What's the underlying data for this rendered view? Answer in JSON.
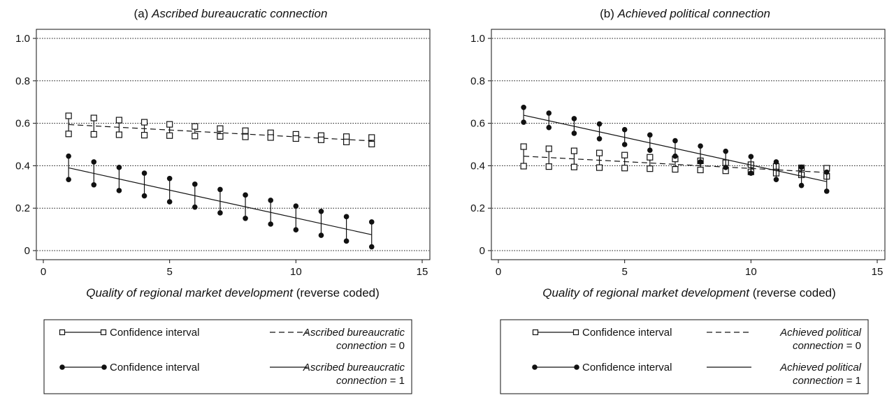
{
  "chart_data": [
    {
      "type": "line",
      "panel_label": "(a)",
      "title": "Ascribed bureaucratic connection",
      "xlabel_italic": "Quality of regional market development",
      "xlabel_suffix": "(reverse coded)",
      "xlim": [
        0,
        15
      ],
      "ylim": [
        0,
        1
      ],
      "x_ticks": [
        0,
        5,
        10,
        15
      ],
      "y_ticks": [
        0,
        0.2,
        0.4,
        0.6,
        0.8,
        1.0
      ],
      "y_tick_labels": [
        "0",
        "0.2",
        "0.4",
        "0.6",
        "0.8",
        "1.0"
      ],
      "grid": "horizontal dotted",
      "series": [
        {
          "key": "c0",
          "marker": "hollow-square",
          "line": "dashed",
          "x": [
            1,
            2,
            3,
            4,
            5,
            6,
            7,
            8,
            9,
            10,
            11,
            12,
            13
          ],
          "y_fit": [
            0.594,
            0.588,
            0.581,
            0.575,
            0.568,
            0.562,
            0.556,
            0.549,
            0.543,
            0.536,
            0.53,
            0.524,
            0.517
          ],
          "ci_upper": [
            0.635,
            0.625,
            0.615,
            0.605,
            0.595,
            0.585,
            0.575,
            0.565,
            0.555,
            0.548,
            0.542,
            0.537,
            0.533
          ],
          "ci_lower": [
            0.55,
            0.548,
            0.546,
            0.544,
            0.542,
            0.54,
            0.538,
            0.536,
            0.533,
            0.528,
            0.522,
            0.512,
            0.502
          ]
        },
        {
          "key": "c1",
          "marker": "filled-circle",
          "line": "solid",
          "x": [
            1,
            2,
            3,
            4,
            5,
            6,
            7,
            8,
            9,
            10,
            11,
            12,
            13
          ],
          "y_fit": [
            0.39,
            0.364,
            0.338,
            0.311,
            0.285,
            0.259,
            0.233,
            0.206,
            0.18,
            0.154,
            0.128,
            0.101,
            0.075
          ],
          "ci_upper": [
            0.445,
            0.418,
            0.392,
            0.365,
            0.34,
            0.313,
            0.288,
            0.262,
            0.237,
            0.21,
            0.185,
            0.16,
            0.135
          ],
          "ci_lower": [
            0.335,
            0.31,
            0.283,
            0.258,
            0.23,
            0.205,
            0.178,
            0.152,
            0.125,
            0.098,
            0.072,
            0.045,
            0.018
          ]
        }
      ],
      "legend": {
        "ci_label": "Confidence interval",
        "line_label_0a": "Ascribed bureaucratic",
        "line_label_0b": "connection",
        "line_label_0c": "= 0",
        "line_label_1a": "Ascribed bureaucratic",
        "line_label_1b": "connection",
        "line_label_1c": "= 1"
      }
    },
    {
      "type": "line",
      "panel_label": "(b)",
      "title": "Achieved political connection",
      "xlabel_italic": "Quality of regional market development",
      "xlabel_suffix": "(reverse coded)",
      "xlim": [
        0,
        15
      ],
      "ylim": [
        0,
        1
      ],
      "x_ticks": [
        0,
        5,
        10,
        15
      ],
      "y_ticks": [
        0,
        0.2,
        0.4,
        0.6,
        0.8,
        1.0
      ],
      "y_tick_labels": [
        "0",
        "0.2",
        "0.4",
        "0.6",
        "0.8",
        "1.0"
      ],
      "grid": "horizontal dotted",
      "series": [
        {
          "key": "c0",
          "marker": "hollow-square",
          "line": "dashed",
          "x": [
            1,
            2,
            3,
            4,
            5,
            6,
            7,
            8,
            9,
            10,
            11,
            12,
            13
          ],
          "y_fit": [
            0.445,
            0.439,
            0.432,
            0.426,
            0.419,
            0.413,
            0.407,
            0.4,
            0.394,
            0.387,
            0.381,
            0.375,
            0.368
          ],
          "ci_upper": [
            0.49,
            0.48,
            0.47,
            0.46,
            0.45,
            0.44,
            0.432,
            0.423,
            0.414,
            0.405,
            0.397,
            0.39,
            0.388
          ],
          "ci_lower": [
            0.398,
            0.396,
            0.394,
            0.391,
            0.389,
            0.386,
            0.383,
            0.38,
            0.376,
            0.371,
            0.365,
            0.357,
            0.35
          ]
        },
        {
          "key": "c1",
          "marker": "filled-circle",
          "line": "solid",
          "x": [
            1,
            2,
            3,
            4,
            5,
            6,
            7,
            8,
            9,
            10,
            11,
            12,
            13
          ],
          "y_fit": [
            0.638,
            0.612,
            0.586,
            0.56,
            0.534,
            0.508,
            0.481,
            0.455,
            0.429,
            0.403,
            0.377,
            0.351,
            0.325
          ],
          "ci_upper": [
            0.675,
            0.648,
            0.622,
            0.597,
            0.57,
            0.545,
            0.518,
            0.493,
            0.468,
            0.443,
            0.418,
            0.393,
            0.37
          ],
          "ci_lower": [
            0.605,
            0.58,
            0.553,
            0.527,
            0.5,
            0.473,
            0.445,
            0.418,
            0.392,
            0.365,
            0.335,
            0.307,
            0.28
          ]
        }
      ],
      "legend": {
        "ci_label": "Confidence interval",
        "line_label_0a": "Achieved political",
        "line_label_0b": "connection",
        "line_label_0c": "= 0",
        "line_label_1a": "Achieved political",
        "line_label_1b": "connection",
        "line_label_1c": "= 1"
      }
    }
  ]
}
